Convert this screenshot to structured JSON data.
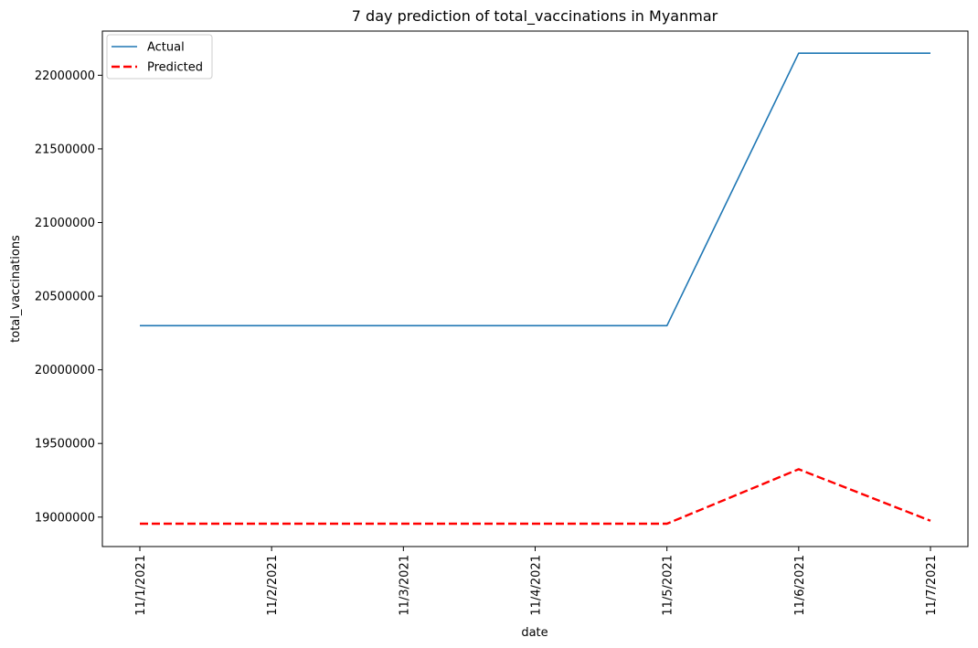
{
  "chart_data": {
    "type": "line",
    "title": "7 day prediction of total_vaccinations in Myanmar",
    "xlabel": "date",
    "ylabel": "total_vaccinations",
    "categories": [
      "11/1/2021",
      "11/2/2021",
      "11/3/2021",
      "11/4/2021",
      "11/5/2021",
      "11/6/2021",
      "11/7/2021"
    ],
    "yticks": [
      19000000,
      19500000,
      20000000,
      20500000,
      21000000,
      21500000,
      22000000
    ],
    "ytick_labels": [
      "19000000",
      "19500000",
      "20000000",
      "20500000",
      "21000000",
      "21500000",
      "22000000"
    ],
    "ylim": [
      18800000,
      22300000
    ],
    "grid": false,
    "legend_position": "top-left",
    "series": [
      {
        "name": "Actual",
        "color": "#1f77b4",
        "style": "solid",
        "values": [
          20300000,
          20300000,
          20300000,
          20300000,
          20300000,
          22150000,
          22150000
        ]
      },
      {
        "name": "Predicted",
        "color": "#ff0000",
        "style": "dashed",
        "values": [
          18955000,
          18955000,
          18955000,
          18955000,
          18955000,
          19325000,
          18975000
        ]
      }
    ]
  }
}
